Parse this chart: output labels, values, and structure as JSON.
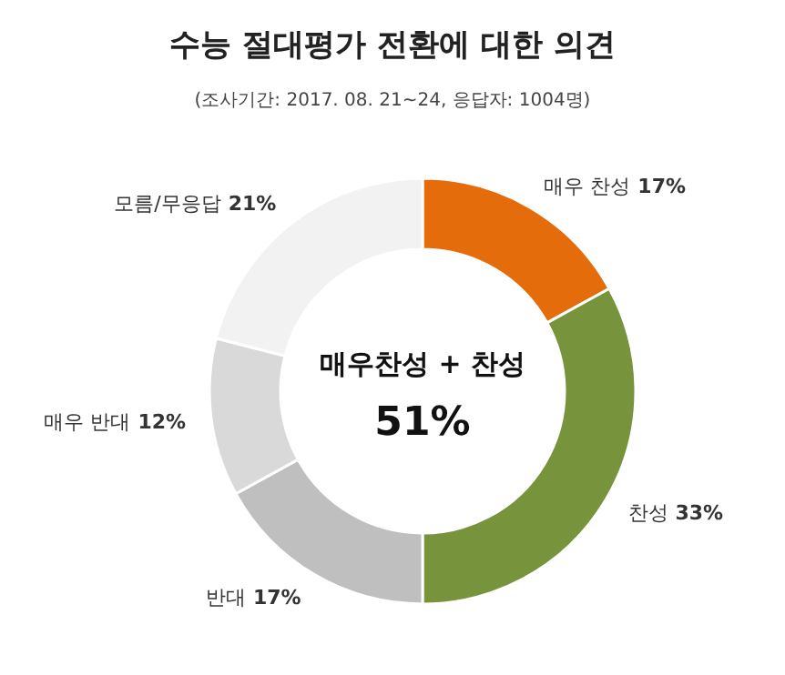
{
  "chart_data": {
    "type": "donut",
    "title": "수능 절대평가 전환에 대한 의견",
    "subtitle": "(조사기간: 2017. 08. 21~24, 응답자: 1004명)",
    "categories": [
      "매우 찬성",
      "찬성",
      "반대",
      "매우 반대",
      "모름/무응답"
    ],
    "values": [
      17,
      33,
      17,
      12,
      21
    ],
    "value_labels": [
      "17%",
      "33%",
      "17%",
      "12%",
      "21%"
    ],
    "colors": [
      "#e46c0a",
      "#77933c",
      "#bfbfbf",
      "#d9d9d9",
      "#f2f2f2"
    ],
    "annotations": [
      "매우찬성 + 찬성",
      "51%"
    ]
  }
}
